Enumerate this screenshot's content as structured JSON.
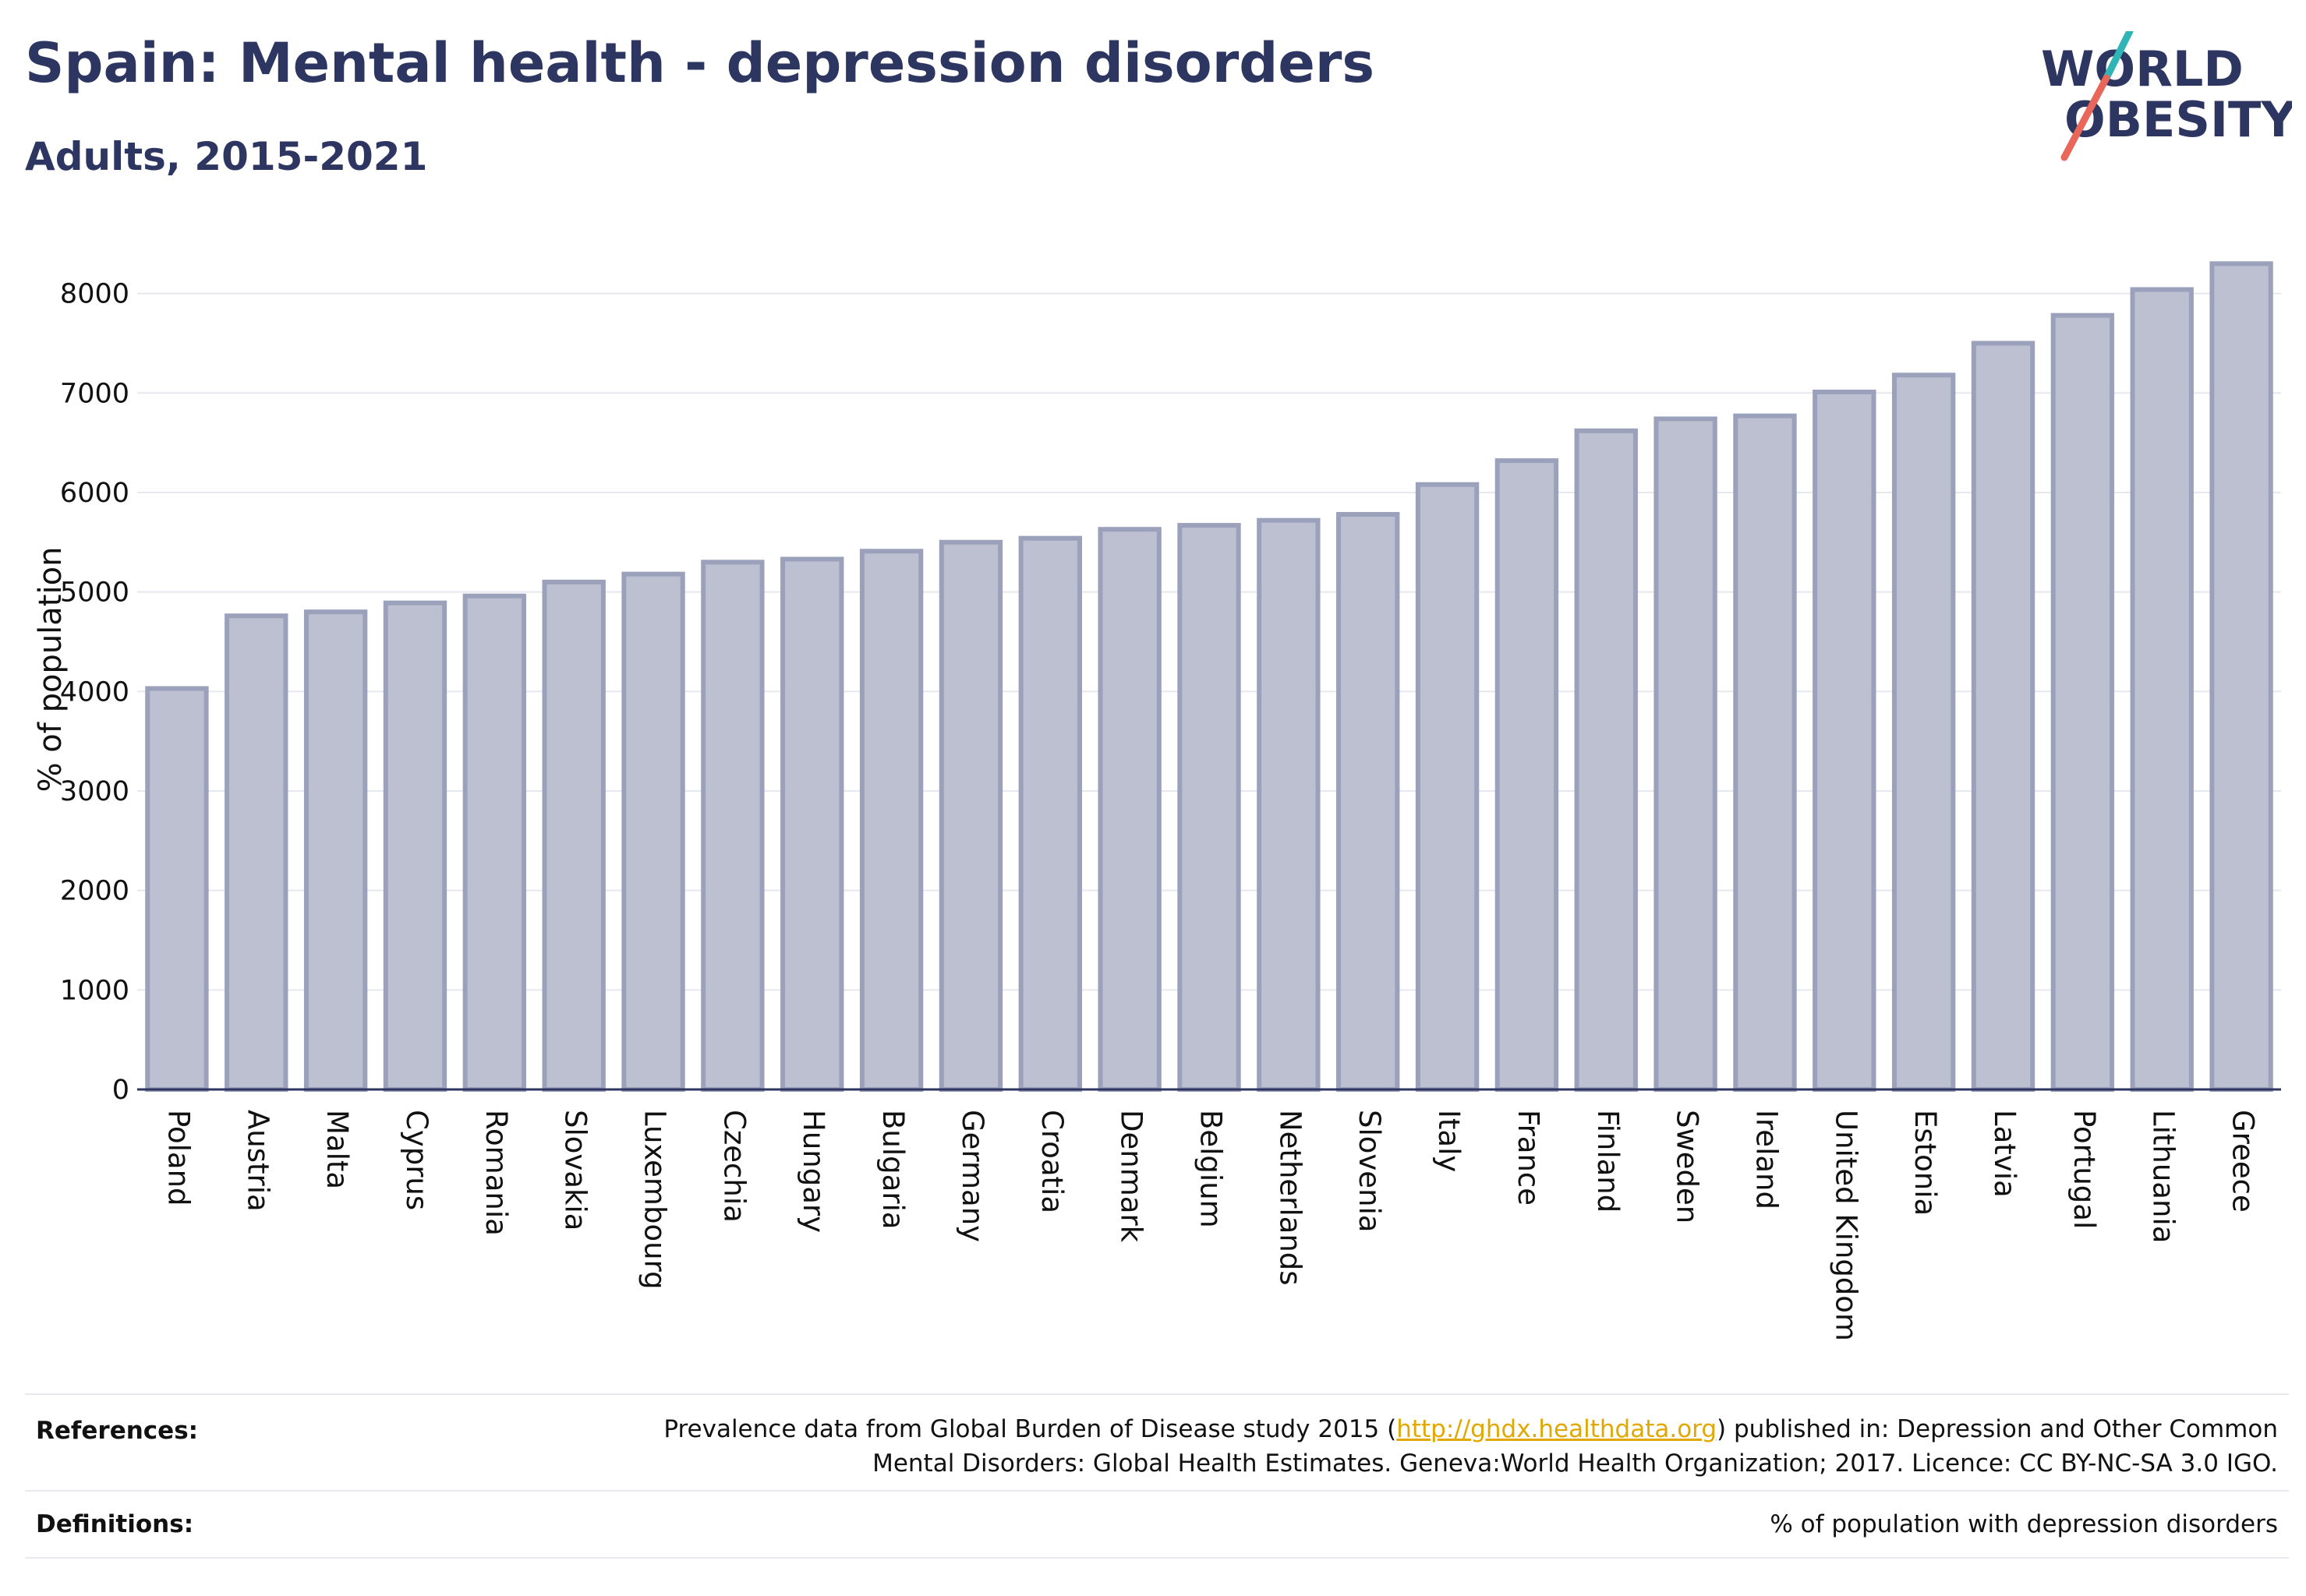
{
  "header": {
    "title": "Spain: Mental health - depression disorders",
    "subtitle": "Adults, 2015-2021"
  },
  "logo": {
    "line1": "WORLD",
    "line2": "OBESITY"
  },
  "colors": {
    "title": "#2d3561",
    "bar_fill": "#bcc0d1",
    "bar_stroke": "#9ba1bb",
    "axis": "#2d3561",
    "grid": "#e6e8ef",
    "link": "#e0a800",
    "logo_slash_top": "#2fb5b5",
    "logo_slash_bottom": "#e8675a"
  },
  "chart_data": {
    "type": "bar",
    "ylabel": "% of population",
    "ylim": [
      0,
      8600
    ],
    "yticks": [
      0,
      1000,
      2000,
      3000,
      4000,
      5000,
      6000,
      7000,
      8000
    ],
    "grid": true,
    "categories": [
      "Poland",
      "Austria",
      "Malta",
      "Cyprus",
      "Romania",
      "Slovakia",
      "Luxembourg",
      "Czechia",
      "Hungary",
      "Bulgaria",
      "Germany",
      "Croatia",
      "Denmark",
      "Belgium",
      "Netherlands",
      "Slovenia",
      "Italy",
      "France",
      "Finland",
      "Sweden",
      "Ireland",
      "United Kingdom",
      "Estonia",
      "Latvia",
      "Portugal",
      "Lithuania",
      "Greece"
    ],
    "values": [
      4030,
      4760,
      4800,
      4890,
      4960,
      5100,
      5180,
      5300,
      5330,
      5410,
      5500,
      5540,
      5630,
      5670,
      5720,
      5780,
      6080,
      6320,
      6620,
      6740,
      6770,
      7010,
      7180,
      7500,
      7780,
      8040,
      8300
    ]
  },
  "footer": {
    "references_label": "References:",
    "references_line1_pre": "Prevalence data from Global Burden of Disease study 2015 (",
    "references_link": "http://ghdx.healthdata.org",
    "references_line1_post": ") published in: Depression and Other Common",
    "references_line2": "Mental Disorders: Global Health Estimates. Geneva:World Health Organization; 2017. Licence: CC BY-NC-SA 3.0 IGO.",
    "definitions_label": "Definitions:",
    "definitions_text": "% of population with depression disorders"
  }
}
